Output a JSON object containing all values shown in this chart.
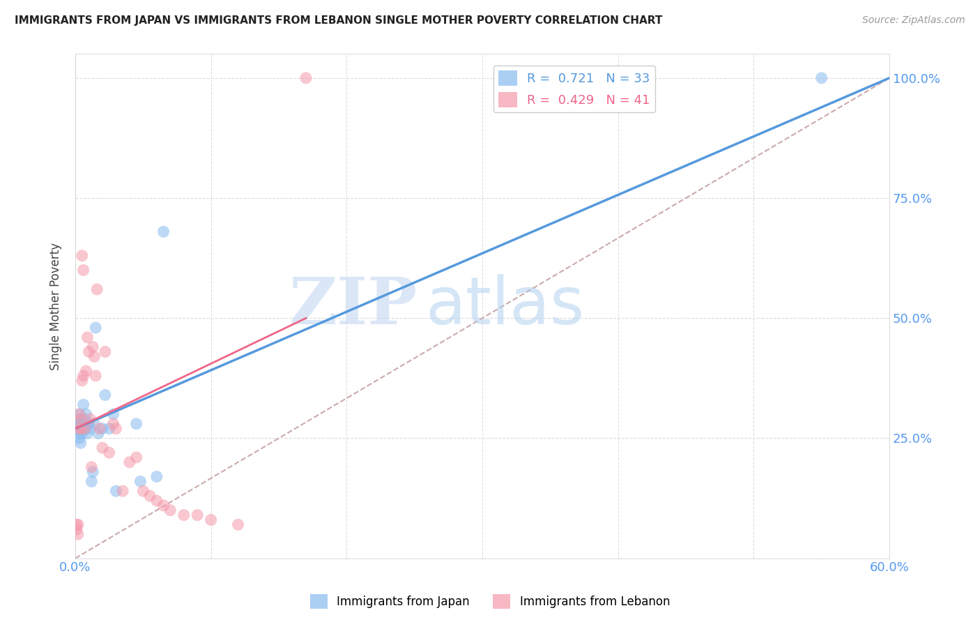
{
  "title": "IMMIGRANTS FROM JAPAN VS IMMIGRANTS FROM LEBANON SINGLE MOTHER POVERTY CORRELATION CHART",
  "source": "Source: ZipAtlas.com",
  "ylabel": "Single Mother Poverty",
  "y_ticks": [
    0.0,
    0.25,
    0.5,
    0.75,
    1.0
  ],
  "y_tick_labels": [
    "",
    "25.0%",
    "50.0%",
    "75.0%",
    "100.0%"
  ],
  "xlim": [
    0.0,
    0.6
  ],
  "ylim": [
    0.0,
    1.05
  ],
  "japan_R": 0.721,
  "japan_N": 33,
  "lebanon_R": 0.429,
  "lebanon_N": 41,
  "japan_color": "#88bbee",
  "lebanon_color": "#f599aa",
  "japan_line_color": "#5599dd",
  "lebanon_line_color": "#ee6688",
  "dashed_line_color": "#ccaaaa",
  "legend_japan_label": "Immigrants from Japan",
  "legend_lebanon_label": "Immigrants from Lebanon",
  "watermark_zip": "ZIP",
  "watermark_atlas": "atlas",
  "japan_x": [
    0.001,
    0.001,
    0.002,
    0.002,
    0.003,
    0.003,
    0.003,
    0.004,
    0.004,
    0.005,
    0.005,
    0.006,
    0.007,
    0.007,
    0.008,
    0.009,
    0.01,
    0.011,
    0.012,
    0.013,
    0.014,
    0.015,
    0.017,
    0.02,
    0.022,
    0.025,
    0.028,
    0.03,
    0.045,
    0.048,
    0.06,
    0.065,
    0.55
  ],
  "japan_y": [
    0.27,
    0.29,
    0.26,
    0.28,
    0.3,
    0.28,
    0.25,
    0.27,
    0.24,
    0.28,
    0.26,
    0.32,
    0.29,
    0.27,
    0.3,
    0.26,
    0.28,
    0.27,
    0.16,
    0.18,
    0.28,
    0.48,
    0.26,
    0.27,
    0.34,
    0.27,
    0.3,
    0.14,
    0.28,
    0.16,
    0.17,
    0.68,
    1.0
  ],
  "lebanon_x": [
    0.001,
    0.001,
    0.002,
    0.002,
    0.003,
    0.003,
    0.004,
    0.004,
    0.005,
    0.005,
    0.006,
    0.006,
    0.007,
    0.008,
    0.009,
    0.01,
    0.011,
    0.012,
    0.013,
    0.014,
    0.015,
    0.016,
    0.018,
    0.02,
    0.022,
    0.025,
    0.028,
    0.03,
    0.035,
    0.04,
    0.045,
    0.05,
    0.055,
    0.06,
    0.065,
    0.07,
    0.08,
    0.09,
    0.1,
    0.12,
    0.17
  ],
  "lebanon_y": [
    0.06,
    0.07,
    0.05,
    0.07,
    0.27,
    0.3,
    0.27,
    0.29,
    0.63,
    0.37,
    0.38,
    0.6,
    0.27,
    0.39,
    0.46,
    0.43,
    0.29,
    0.19,
    0.44,
    0.42,
    0.38,
    0.56,
    0.27,
    0.23,
    0.43,
    0.22,
    0.28,
    0.27,
    0.14,
    0.2,
    0.21,
    0.14,
    0.13,
    0.12,
    0.11,
    0.1,
    0.09,
    0.09,
    0.08,
    0.07,
    1.0
  ],
  "japan_line_x0": 0.0,
  "japan_line_y0": 0.27,
  "japan_line_x1": 0.6,
  "japan_line_y1": 1.0,
  "lebanon_line_x0": 0.0,
  "lebanon_line_y0": 0.27,
  "lebanon_line_x1": 0.17,
  "lebanon_line_y1": 0.5,
  "dash_line_x0": 0.0,
  "dash_line_y0": 0.0,
  "dash_line_x1": 0.6,
  "dash_line_y1": 1.0,
  "background_color": "#ffffff",
  "grid_color": "#dddddd"
}
